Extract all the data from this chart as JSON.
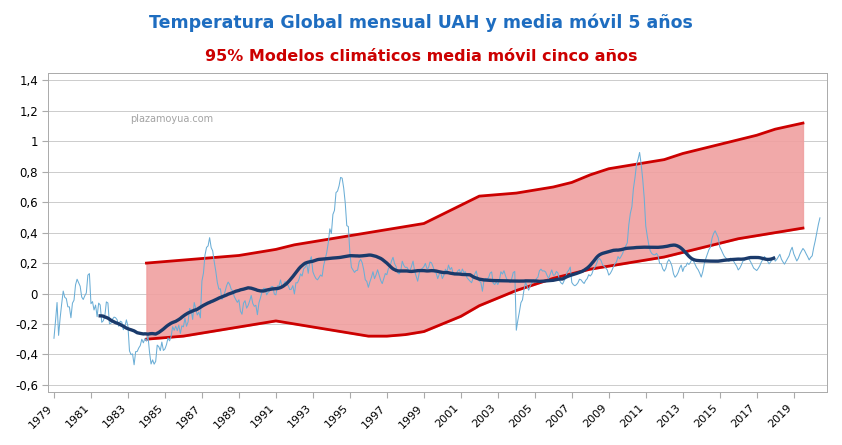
{
  "title_line1": "Temperatura Global mensual UAH y media móvil 5 años",
  "title_line2": "95% Modelos climáticos media móvil cinco años",
  "title_color1": "#1e6dc0",
  "title_color2": "#cc0000",
  "ylim": [
    -0.65,
    1.45
  ],
  "yticks": [
    -0.6,
    -0.4,
    -0.2,
    0.0,
    0.2,
    0.4,
    0.6,
    0.8,
    1.0,
    1.2,
    1.4
  ],
  "xlim": [
    1978.7,
    2020.8
  ],
  "xticks": [
    1979,
    1981,
    1983,
    1985,
    1987,
    1989,
    1991,
    1993,
    1995,
    1997,
    1999,
    2001,
    2003,
    2005,
    2007,
    2009,
    2011,
    2013,
    2015,
    2017,
    2019
  ],
  "monthly_color": "#6baed6",
  "mavg_color": "#1a3a6b",
  "model_fill_color": "#f0a0a0",
  "model_upper_color": "#cc0000",
  "model_lower_color": "#cc0000",
  "background_color": "#ffffff",
  "watermark": "plazamoyua.com",
  "monthly_data": [
    -0.294,
    -0.181,
    -0.059,
    -0.275,
    -0.162,
    -0.068,
    0.016,
    -0.025,
    -0.033,
    -0.087,
    -0.088,
    -0.159,
    -0.063,
    -0.044,
    0.057,
    0.094,
    0.071,
    0.048,
    -0.023,
    -0.039,
    -0.015,
    0.004,
    0.121,
    0.131,
    -0.067,
    -0.053,
    -0.108,
    -0.076,
    -0.152,
    -0.063,
    -0.075,
    -0.189,
    -0.179,
    -0.149,
    -0.055,
    -0.062,
    -0.199,
    -0.195,
    -0.168,
    -0.155,
    -0.159,
    -0.173,
    -0.215,
    -0.182,
    -0.187,
    -0.238,
    -0.216,
    -0.173,
    -0.215,
    -0.377,
    -0.401,
    -0.397,
    -0.468,
    -0.382,
    -0.381,
    -0.358,
    -0.342,
    -0.3,
    -0.324,
    -0.296,
    -0.313,
    -0.279,
    -0.385,
    -0.463,
    -0.436,
    -0.464,
    -0.446,
    -0.339,
    -0.349,
    -0.375,
    -0.319,
    -0.374,
    -0.364,
    -0.336,
    -0.292,
    -0.311,
    -0.283,
    -0.218,
    -0.242,
    -0.214,
    -0.244,
    -0.207,
    -0.262,
    -0.212,
    -0.219,
    -0.162,
    -0.215,
    -0.187,
    -0.098,
    -0.108,
    -0.17,
    -0.059,
    -0.098,
    -0.141,
    -0.122,
    -0.16,
    0.082,
    0.134,
    0.253,
    0.303,
    0.313,
    0.367,
    0.302,
    0.28,
    0.208,
    0.147,
    0.072,
    0.029,
    0.031,
    -0.039,
    -0.019,
    0.013,
    0.051,
    0.075,
    0.06,
    0.028,
    0.017,
    -0.02,
    -0.04,
    -0.058,
    -0.041,
    -0.116,
    -0.136,
    -0.063,
    -0.047,
    -0.096,
    -0.078,
    -0.048,
    -0.013,
    -0.065,
    -0.084,
    -0.077,
    -0.139,
    -0.061,
    -0.028,
    0.011,
    0.034,
    0.034,
    -0.009,
    0.009,
    0.016,
    0.045,
    0.046,
    -0.004,
    -0.009,
    0.05,
    0.049,
    0.089,
    0.04,
    0.059,
    0.079,
    0.059,
    0.052,
    0.026,
    0.028,
    0.052,
    -0.003,
    0.071,
    0.07,
    0.094,
    0.129,
    0.115,
    0.162,
    0.172,
    0.194,
    0.133,
    0.215,
    0.242,
    0.143,
    0.117,
    0.098,
    0.09,
    0.106,
    0.122,
    0.113,
    0.184,
    0.228,
    0.27,
    0.334,
    0.425,
    0.394,
    0.52,
    0.546,
    0.663,
    0.673,
    0.708,
    0.763,
    0.758,
    0.693,
    0.595,
    0.446,
    0.44,
    0.27,
    0.172,
    0.156,
    0.139,
    0.151,
    0.153,
    0.208,
    0.225,
    0.202,
    0.155,
    0.091,
    0.079,
    0.041,
    0.077,
    0.107,
    0.143,
    0.098,
    0.123,
    0.156,
    0.121,
    0.086,
    0.065,
    0.097,
    0.131,
    0.124,
    0.164,
    0.176,
    0.213,
    0.238,
    0.196,
    0.177,
    0.137,
    0.129,
    0.147,
    0.212,
    0.185,
    0.171,
    0.173,
    0.155,
    0.149,
    0.179,
    0.213,
    0.149,
    0.115,
    0.081,
    0.134,
    0.157,
    0.165,
    0.176,
    0.198,
    0.164,
    0.168,
    0.207,
    0.201,
    0.176,
    0.141,
    0.135,
    0.098,
    0.127,
    0.138,
    0.098,
    0.12,
    0.16,
    0.141,
    0.187,
    0.157,
    0.171,
    0.134,
    0.124,
    0.131,
    0.148,
    0.158,
    0.131,
    0.161,
    0.138,
    0.143,
    0.104,
    0.092,
    0.081,
    0.071,
    0.103,
    0.127,
    0.148,
    0.101,
    0.082,
    0.073,
    0.015,
    0.085,
    0.099,
    0.095,
    0.104,
    0.134,
    0.142,
    0.068,
    0.059,
    0.078,
    0.059,
    0.084,
    0.143,
    0.128,
    0.15,
    0.116,
    0.09,
    0.083,
    0.073,
    0.097,
    0.138,
    0.145,
    -0.241,
    -0.176,
    -0.121,
    -0.06,
    -0.042,
    0.025,
    0.075,
    0.047,
    0.022,
    0.049,
    0.07,
    0.09,
    0.072,
    0.098,
    0.107,
    0.149,
    0.16,
    0.148,
    0.149,
    0.142,
    0.118,
    0.099,
    0.127,
    0.155,
    0.12,
    0.122,
    0.145,
    0.135,
    0.086,
    0.07,
    0.062,
    0.084,
    0.105,
    0.14,
    0.152,
    0.174,
    0.073,
    0.058,
    0.051,
    0.058,
    0.071,
    0.094,
    0.09,
    0.076,
    0.066,
    0.086,
    0.098,
    0.124,
    0.115,
    0.128,
    0.158,
    0.172,
    0.194,
    0.224,
    0.23,
    0.216,
    0.188,
    0.178,
    0.168,
    0.155,
    0.121,
    0.132,
    0.151,
    0.175,
    0.196,
    0.208,
    0.243,
    0.228,
    0.244,
    0.263,
    0.297,
    0.312,
    0.333,
    0.452,
    0.527,
    0.57,
    0.69,
    0.761,
    0.848,
    0.882,
    0.927,
    0.851,
    0.753,
    0.628,
    0.443,
    0.376,
    0.318,
    0.278,
    0.262,
    0.255,
    0.254,
    0.264,
    0.247,
    0.197,
    0.196,
    0.162,
    0.147,
    0.165,
    0.206,
    0.223,
    0.207,
    0.18,
    0.129,
    0.107,
    0.118,
    0.138,
    0.168,
    0.187,
    0.145,
    0.175,
    0.179,
    0.201,
    0.191,
    0.205,
    0.228,
    0.213,
    0.192,
    0.17,
    0.156,
    0.134,
    0.108,
    0.144,
    0.196,
    0.231,
    0.259,
    0.289,
    0.305,
    0.363,
    0.394,
    0.412,
    0.389,
    0.367,
    0.307,
    0.287,
    0.264,
    0.244,
    0.233,
    0.219,
    0.211,
    0.232,
    0.226,
    0.213,
    0.195,
    0.18,
    0.155,
    0.167,
    0.187,
    0.213,
    0.218,
    0.227,
    0.237,
    0.226,
    0.209,
    0.189,
    0.167,
    0.159,
    0.151,
    0.165,
    0.183,
    0.207,
    0.224,
    0.243,
    0.229,
    0.213,
    0.195,
    0.208,
    0.225,
    0.241,
    0.213,
    0.224,
    0.241,
    0.258,
    0.226,
    0.208,
    0.193,
    0.211,
    0.228,
    0.248,
    0.282,
    0.304,
    0.262,
    0.238,
    0.214,
    0.231,
    0.258,
    0.278,
    0.296,
    0.283,
    0.262,
    0.243,
    0.221,
    0.237,
    0.248,
    0.303,
    0.348,
    0.402,
    0.454,
    0.497
  ],
  "model_upper_x": [
    1984.0,
    1985.0,
    1986.0,
    1987.0,
    1988.0,
    1989.0,
    1990.0,
    1991.0,
    1992.0,
    1993.0,
    1994.0,
    1995.0,
    1996.0,
    1997.0,
    1998.0,
    1999.0,
    2000.0,
    2001.0,
    2002.0,
    2003.0,
    2004.0,
    2005.0,
    2006.0,
    2007.0,
    2008.0,
    2009.0,
    2010.0,
    2011.0,
    2012.0,
    2013.0,
    2014.0,
    2015.0,
    2016.0,
    2017.0,
    2018.0,
    2019.5
  ],
  "model_upper_y": [
    0.2,
    0.21,
    0.22,
    0.23,
    0.24,
    0.25,
    0.27,
    0.29,
    0.32,
    0.34,
    0.36,
    0.38,
    0.4,
    0.42,
    0.44,
    0.46,
    0.52,
    0.58,
    0.64,
    0.65,
    0.66,
    0.68,
    0.7,
    0.73,
    0.78,
    0.82,
    0.84,
    0.86,
    0.88,
    0.92,
    0.95,
    0.98,
    1.01,
    1.04,
    1.08,
    1.12
  ],
  "model_lower_x": [
    1984.0,
    1985.0,
    1986.0,
    1987.0,
    1988.0,
    1989.0,
    1990.0,
    1991.0,
    1992.0,
    1993.0,
    1994.0,
    1995.0,
    1996.0,
    1997.0,
    1998.0,
    1999.0,
    2000.0,
    2001.0,
    2002.0,
    2003.0,
    2004.0,
    2005.0,
    2006.0,
    2007.0,
    2008.0,
    2009.0,
    2010.0,
    2011.0,
    2012.0,
    2013.0,
    2014.0,
    2015.0,
    2016.0,
    2017.0,
    2018.0,
    2019.5
  ],
  "model_lower_y": [
    -0.3,
    -0.29,
    -0.28,
    -0.26,
    -0.24,
    -0.22,
    -0.2,
    -0.18,
    -0.2,
    -0.22,
    -0.24,
    -0.26,
    -0.28,
    -0.28,
    -0.27,
    -0.25,
    -0.2,
    -0.15,
    -0.08,
    -0.03,
    0.02,
    0.06,
    0.1,
    0.13,
    0.16,
    0.18,
    0.2,
    0.22,
    0.24,
    0.27,
    0.3,
    0.33,
    0.36,
    0.38,
    0.4,
    0.43
  ]
}
